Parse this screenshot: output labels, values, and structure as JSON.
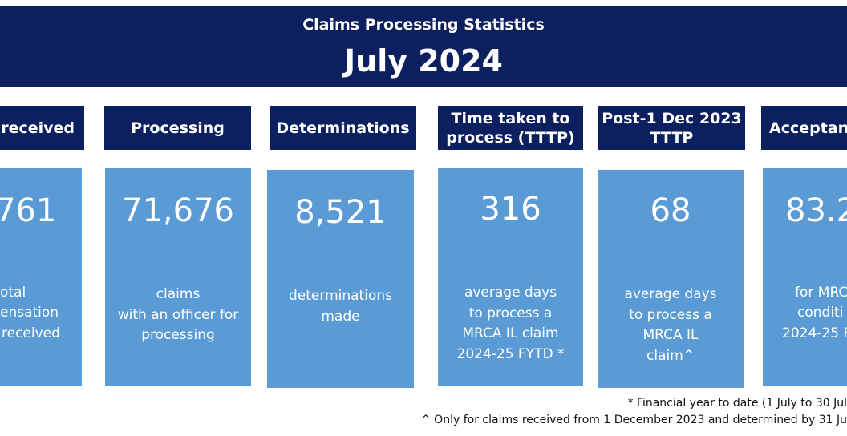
{
  "header": {
    "title": "Claims Processing Statistics",
    "month": "July 2024"
  },
  "columns": [
    {
      "heading": "s received",
      "value": "761",
      "desc": [
        "otal",
        "ensation",
        "received"
      ]
    },
    {
      "heading": "Processing",
      "value": "71,676",
      "desc": [
        "claims",
        "with an officer for",
        "processing"
      ]
    },
    {
      "heading": "Determinations",
      "value": "8,521",
      "desc": [
        "determinations",
        "made"
      ]
    },
    {
      "heading": [
        "Time taken to",
        "process (TTTP)"
      ],
      "value": "316",
      "desc": [
        "average days",
        "to process a",
        "MRCA IL claim",
        "2024-25 FYTD *"
      ]
    },
    {
      "heading": [
        "Post-1 Dec 2023",
        "TTTP"
      ],
      "value": "68",
      "desc": [
        "average days",
        "to process a",
        "MRCA IL",
        "claim^"
      ]
    },
    {
      "heading": "Acceptanc",
      "value": "83.2",
      "desc": [
        "for MRC",
        "conditi",
        "2024-25 F"
      ]
    }
  ],
  "footnotes": [
    "* Financial year to date (1 July to 30 Jul",
    "^ Only for claims received from 1 December 2023 and determined by 31 Ju"
  ],
  "colors": {
    "navy": "#0c1f5e",
    "tile_blue": "#5b9bd5"
  }
}
